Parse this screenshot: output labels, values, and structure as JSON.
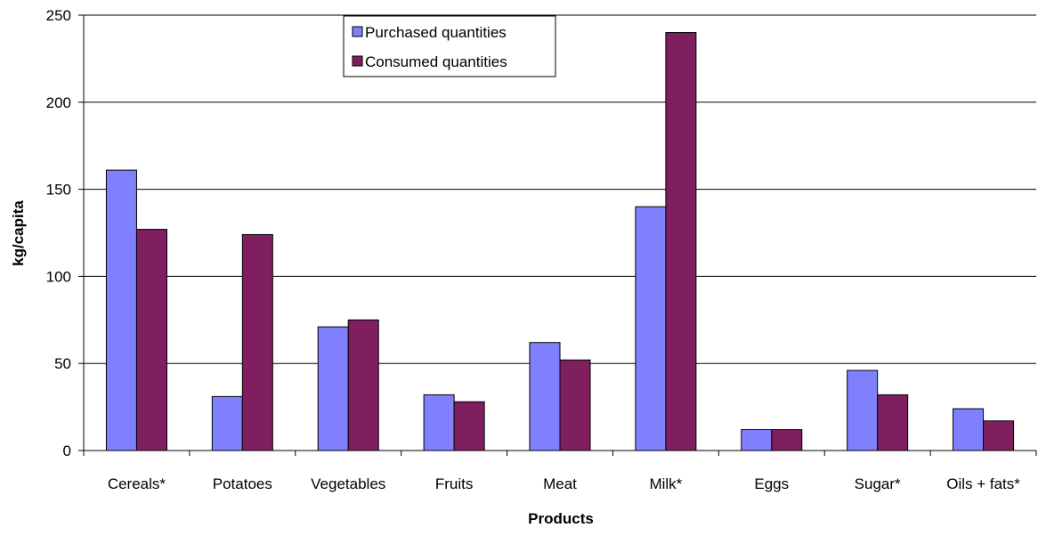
{
  "chart_data": {
    "type": "bar",
    "title": "",
    "xlabel": "Products",
    "ylabel": "kg/capita",
    "ylim": [
      0,
      250
    ],
    "yticks": [
      0,
      50,
      100,
      150,
      200,
      250
    ],
    "grid": true,
    "legend_position": "top-center",
    "categories": [
      "Cereals*",
      "Potatoes",
      "Vegetables",
      "Fruits",
      "Meat",
      "Milk*",
      "Eggs",
      "Sugar*",
      "Oils + fats*"
    ],
    "series": [
      {
        "name": "Purchased quantities",
        "color": "#8080ff",
        "values": [
          161,
          31,
          71,
          32,
          62,
          140,
          12,
          46,
          24
        ]
      },
      {
        "name": "Consumed quantities",
        "color": "#7f1f5f",
        "values": [
          127,
          124,
          75,
          28,
          52,
          240,
          12,
          32,
          17
        ]
      }
    ]
  }
}
